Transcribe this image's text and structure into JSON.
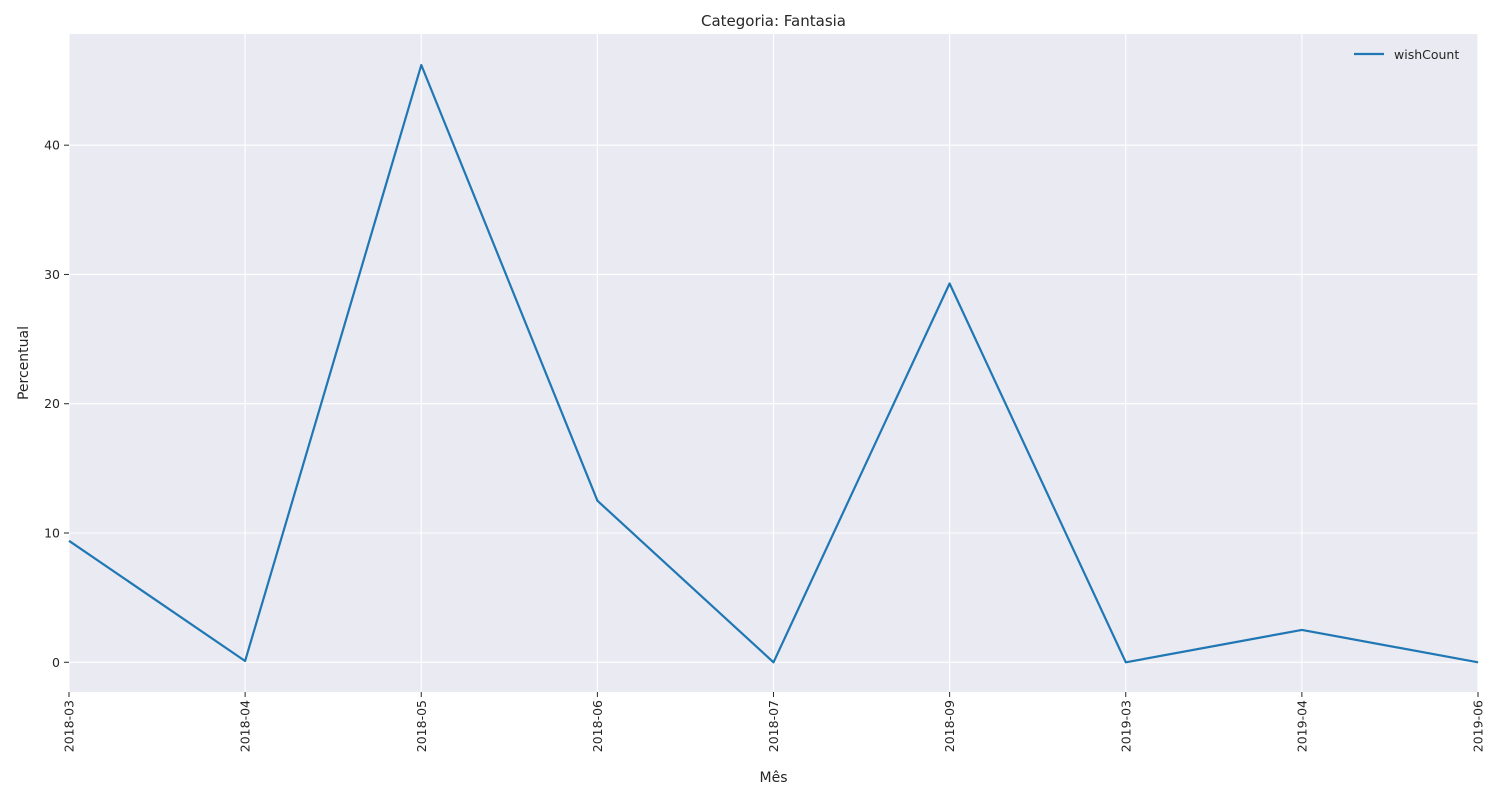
{
  "chart_data": {
    "type": "line",
    "title": "Categoria: Fantasia",
    "xlabel": "Mês",
    "ylabel": "Percentual",
    "categories": [
      "2018-03",
      "2018-04",
      "2018-05",
      "2018-06",
      "2018-07",
      "2018-09",
      "2019-03",
      "2019-04",
      "2019-06"
    ],
    "series": [
      {
        "name": "wishCount",
        "values": [
          9.4,
          0.1,
          46.2,
          12.5,
          0.0,
          29.3,
          0.0,
          2.5,
          0.0
        ],
        "color": "#1f77b4"
      }
    ],
    "ylim": [
      -2.3,
      48.6
    ],
    "yticks": [
      0,
      10,
      20,
      30,
      40
    ],
    "grid": true,
    "legend_position": "top-right",
    "background_color": "#eaeaf2",
    "grid_color": "#ffffff"
  }
}
